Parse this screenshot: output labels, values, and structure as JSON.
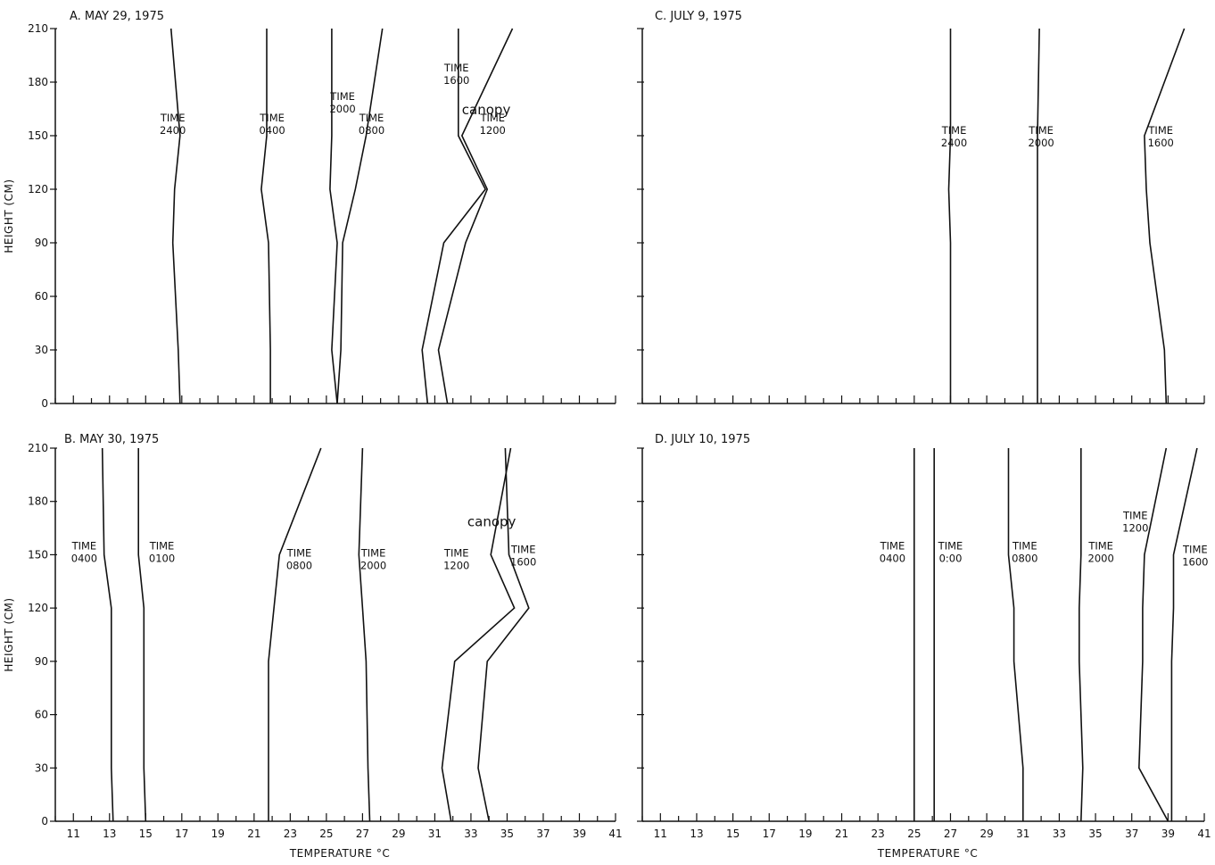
{
  "chart_data": [
    {
      "id": "A",
      "type": "line",
      "title": "A. MAY 29, 1975",
      "xlabel": "",
      "ylabel": "HEIGHT (CM)",
      "xlim": [
        10,
        41
      ],
      "ylim": [
        0,
        210
      ],
      "y_ticks": [
        0,
        30,
        60,
        90,
        120,
        150,
        180,
        210
      ],
      "x_ticks": [],
      "annotations": [
        {
          "text": "canopy",
          "x": 32.5,
          "y": 162
        }
      ],
      "series": [
        {
          "label": [
            "TIME",
            "2400"
          ],
          "label_at": [
            16.5,
            158
          ],
          "x": [
            16.9,
            16.8,
            16.5,
            16.6,
            16.9,
            16.4
          ],
          "y": [
            0,
            30,
            90,
            120,
            150,
            210
          ]
        },
        {
          "label": [
            "TIME",
            "0400"
          ],
          "label_at": [
            22.0,
            158
          ],
          "x": [
            21.9,
            21.9,
            21.8,
            21.4,
            21.7,
            21.7
          ],
          "y": [
            0,
            30,
            90,
            120,
            150,
            210
          ]
        },
        {
          "label": [
            "TIME",
            "2000"
          ],
          "label_at": [
            25.9,
            170
          ],
          "x": [
            25.6,
            25.3,
            25.6,
            25.2,
            25.3,
            25.3
          ],
          "y": [
            0,
            30,
            90,
            120,
            150,
            210
          ]
        },
        {
          "label": [
            "TIME",
            "0800"
          ],
          "label_at": [
            27.5,
            158
          ],
          "x": [
            25.6,
            25.8,
            25.9,
            26.6,
            27.2,
            28.1
          ],
          "y": [
            0,
            30,
            90,
            120,
            150,
            210
          ]
        },
        {
          "label": [
            "TIME",
            "1600"
          ],
          "label_at": [
            32.2,
            186
          ],
          "x": [
            30.6,
            30.3,
            31.5,
            33.8,
            32.3,
            32.3
          ],
          "y": [
            0,
            30,
            90,
            120,
            150,
            210
          ]
        },
        {
          "label": [
            "TIME",
            "1200"
          ],
          "label_at": [
            34.2,
            158
          ],
          "x": [
            31.7,
            31.2,
            32.7,
            33.9,
            32.5,
            35.3
          ],
          "y": [
            0,
            30,
            90,
            120,
            150,
            210
          ]
        }
      ]
    },
    {
      "id": "C",
      "type": "line",
      "title": "C. JULY 9, 1975",
      "xlabel": "",
      "ylabel": "",
      "xlim": [
        10,
        41
      ],
      "ylim": [
        0,
        210
      ],
      "y_ticks": [
        0,
        30,
        60,
        90,
        120,
        150,
        180,
        210
      ],
      "x_ticks": [],
      "annotations": [],
      "series": [
        {
          "label": [
            "TIME",
            "2400"
          ],
          "label_at": [
            27.2,
            151
          ],
          "x": [
            27.0,
            27.0,
            27.0,
            26.9,
            27.0,
            27.0
          ],
          "y": [
            0,
            30,
            90,
            120,
            150,
            210
          ]
        },
        {
          "label": [
            "TIME",
            "2000"
          ],
          "label_at": [
            32.0,
            151
          ],
          "x": [
            31.8,
            31.8,
            31.8,
            31.8,
            31.8,
            31.9
          ],
          "y": [
            0,
            30,
            90,
            120,
            150,
            210
          ]
        },
        {
          "label": [
            "TIME",
            "1600"
          ],
          "label_at": [
            38.6,
            151
          ],
          "x": [
            38.9,
            38.8,
            38.0,
            37.8,
            37.7,
            39.9
          ],
          "y": [
            0,
            30,
            90,
            120,
            150,
            210
          ]
        }
      ]
    },
    {
      "id": "B",
      "type": "line",
      "title": "B. MAY 30, 1975",
      "xlabel": "TEMPERATURE °C",
      "ylabel": "HEIGHT (CM)",
      "xlim": [
        10,
        41
      ],
      "ylim": [
        0,
        210
      ],
      "y_ticks": [
        0,
        30,
        60,
        90,
        120,
        150,
        180,
        210
      ],
      "x_ticks": [
        "11",
        "13",
        "15",
        "17",
        "19",
        "21",
        "23",
        "25",
        "27",
        "29",
        "31",
        "33",
        "35",
        "37",
        "39",
        "41"
      ],
      "annotations": [
        {
          "text": "canopy",
          "x": 32.8,
          "y": 166
        }
      ],
      "series": [
        {
          "label": [
            "TIME",
            "0400"
          ],
          "label_at": [
            11.6,
            153
          ],
          "x": [
            13.2,
            13.1,
            13.1,
            13.1,
            12.7,
            12.6
          ],
          "y": [
            0,
            30,
            90,
            120,
            150,
            210
          ]
        },
        {
          "label": [
            "TIME",
            "0100"
          ],
          "label_at": [
            15.9,
            153
          ],
          "x": [
            15.0,
            14.9,
            14.9,
            14.9,
            14.6,
            14.6
          ],
          "y": [
            0,
            30,
            90,
            120,
            150,
            210
          ]
        },
        {
          "label": [
            "TIME",
            "0800"
          ],
          "label_at": [
            23.5,
            149
          ],
          "x": [
            21.8,
            21.8,
            21.8,
            22.1,
            22.4,
            24.7
          ],
          "y": [
            0,
            30,
            90,
            120,
            150,
            210
          ]
        },
        {
          "label": [
            "TIME",
            "2000"
          ],
          "label_at": [
            27.6,
            149
          ],
          "x": [
            27.4,
            27.3,
            27.2,
            27.0,
            26.8,
            27.0
          ],
          "y": [
            0,
            30,
            90,
            120,
            150,
            210
          ]
        },
        {
          "label": [
            "TIME",
            "1200"
          ],
          "label_at": [
            32.2,
            149
          ],
          "x": [
            31.9,
            31.4,
            32.1,
            35.4,
            34.1,
            35.2
          ],
          "y": [
            0,
            30,
            90,
            120,
            150,
            210
          ]
        },
        {
          "label": [
            "TIME",
            "1600"
          ],
          "label_at": [
            35.9,
            151
          ],
          "x": [
            34.0,
            33.4,
            33.9,
            36.2,
            35.1,
            34.9
          ],
          "y": [
            0,
            30,
            90,
            120,
            150,
            210
          ]
        }
      ]
    },
    {
      "id": "D",
      "type": "line",
      "title": "D. JULY 10, 1975",
      "xlabel": "TEMPERATURE °C",
      "ylabel": "",
      "xlim": [
        10,
        41
      ],
      "ylim": [
        0,
        210
      ],
      "y_ticks": [
        0,
        30,
        60,
        90,
        120,
        150,
        180,
        210
      ],
      "x_ticks": [
        "11",
        "13",
        "15",
        "17",
        "19",
        "21",
        "23",
        "25",
        "27",
        "29",
        "31",
        "33",
        "35",
        "37",
        "39",
        "41"
      ],
      "annotations": [],
      "series": [
        {
          "label": [
            "TIME",
            "0400"
          ],
          "label_at": [
            23.8,
            153
          ],
          "x": [
            25.0,
            25.0,
            25.0,
            25.0,
            25.0,
            25.0
          ],
          "y": [
            0,
            30,
            90,
            120,
            150,
            210
          ]
        },
        {
          "label": [
            "TIME",
            "0:00"
          ],
          "label_at": [
            27.0,
            153
          ],
          "x": [
            26.1,
            26.1,
            26.1,
            26.1,
            26.1,
            26.1
          ],
          "y": [
            0,
            30,
            90,
            120,
            150,
            210
          ]
        },
        {
          "label": [
            "TIME",
            "0800"
          ],
          "label_at": [
            31.1,
            153
          ],
          "x": [
            31.0,
            31.0,
            30.5,
            30.5,
            30.2,
            30.2
          ],
          "y": [
            0,
            30,
            90,
            120,
            150,
            210
          ]
        },
        {
          "label": [
            "TIME",
            "2000"
          ],
          "label_at": [
            35.3,
            153
          ],
          "x": [
            34.2,
            34.3,
            34.1,
            34.1,
            34.2,
            34.2
          ],
          "y": [
            0,
            30,
            90,
            120,
            150,
            210
          ]
        },
        {
          "label": [
            "TIME",
            "1200"
          ],
          "label_at": [
            37.2,
            170
          ],
          "x": [
            39.0,
            37.4,
            37.6,
            37.6,
            37.7,
            38.9
          ],
          "y": [
            0,
            30,
            90,
            120,
            150,
            210
          ]
        },
        {
          "label": [
            "TIME",
            "1600"
          ],
          "label_at": [
            40.5,
            151
          ],
          "x": [
            39.2,
            39.2,
            39.2,
            39.3,
            39.3,
            40.6
          ],
          "y": [
            0,
            30,
            90,
            120,
            150,
            210
          ]
        }
      ]
    }
  ]
}
